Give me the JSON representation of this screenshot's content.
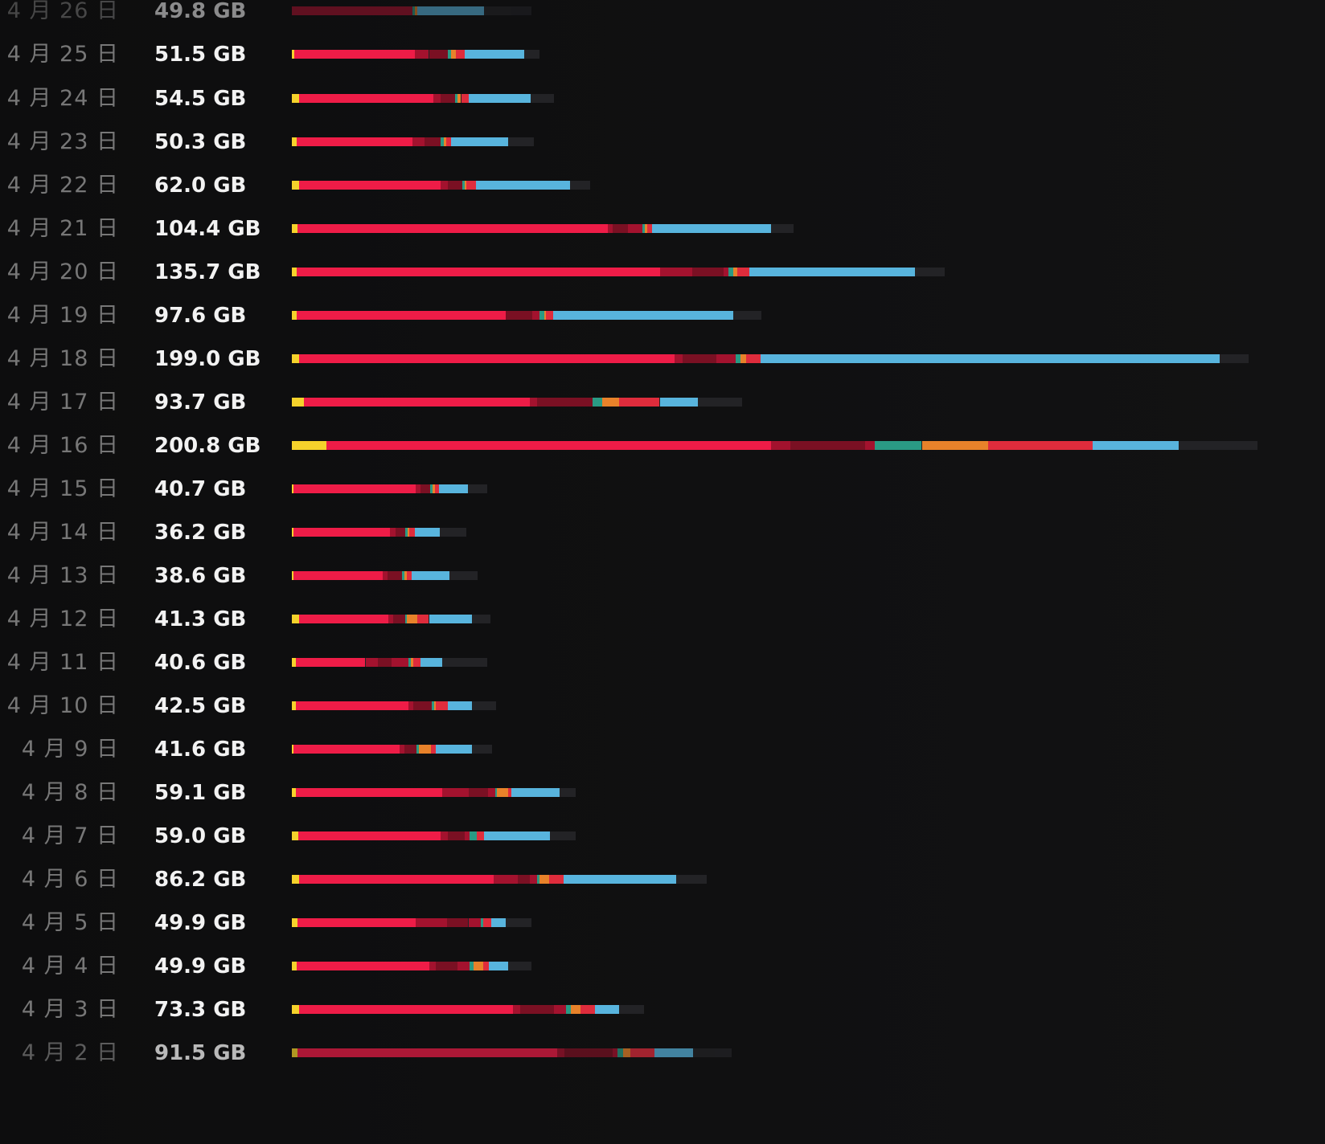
{
  "scale_gb_per_unit": 200.8,
  "colors": {
    "yellow": "#f5d22b",
    "red": "#ee1c47",
    "maroon": "#a3122e",
    "dark-maroon": "#7a1023",
    "teal": "#2a9a84",
    "orange": "#e8822a",
    "red2": "#df2c3c",
    "blue": "#58b4dd",
    "free": "#232326"
  },
  "rows": [
    {
      "date": "4 月 26 日",
      "size": "49.8 GB",
      "state": "dim",
      "total": 49.8,
      "segments": [
        [
          "maroon",
          25
        ],
        [
          "teal",
          0.5
        ],
        [
          "orange",
          0.5
        ],
        [
          "blue",
          14
        ]
      ]
    },
    {
      "date": "4 月 25 日",
      "size": "51.5 GB",
      "total": 51.5,
      "segments": [
        [
          "yellow",
          0.5
        ],
        [
          "red",
          25
        ],
        [
          "maroon",
          3
        ],
        [
          "dark-maroon",
          4
        ],
        [
          "teal",
          0.6
        ],
        [
          "orange",
          1
        ],
        [
          "red2",
          1.8
        ],
        [
          "blue",
          12.5
        ]
      ]
    },
    {
      "date": "4 月 24 日",
      "size": "54.5 GB",
      "total": 54.5,
      "segments": [
        [
          "yellow",
          1.5
        ],
        [
          "red",
          28
        ],
        [
          "maroon",
          1.5
        ],
        [
          "dark-maroon",
          3
        ],
        [
          "teal",
          0.4
        ],
        [
          "orange",
          0.8
        ],
        [
          "red2",
          1.5
        ],
        [
          "blue",
          13
        ]
      ]
    },
    {
      "date": "4 月 23 日",
      "size": "50.3 GB",
      "total": 50.3,
      "segments": [
        [
          "yellow",
          1
        ],
        [
          "red",
          24
        ],
        [
          "maroon",
          2.5
        ],
        [
          "dark-maroon",
          3.5
        ],
        [
          "teal",
          0.6
        ],
        [
          "orange",
          0.5
        ],
        [
          "red2",
          1
        ],
        [
          "blue",
          11.8
        ]
      ]
    },
    {
      "date": "4 月 22 日",
      "size": "62.0 GB",
      "total": 62.0,
      "segments": [
        [
          "yellow",
          1.5
        ],
        [
          "red",
          29.5
        ],
        [
          "maroon",
          1.5
        ],
        [
          "dark-maroon",
          3
        ],
        [
          "teal",
          0.5
        ],
        [
          "orange",
          0.3
        ],
        [
          "red2",
          2
        ],
        [
          "blue",
          19.5
        ]
      ]
    },
    {
      "date": "4 月 21 日",
      "size": "104.4 GB",
      "total": 104.4,
      "segments": [
        [
          "yellow",
          1.2
        ],
        [
          "red",
          64.5
        ],
        [
          "maroon",
          1
        ],
        [
          "dark-maroon",
          3.2
        ],
        [
          "maroon",
          3
        ],
        [
          "teal",
          0.5
        ],
        [
          "orange",
          0.5
        ],
        [
          "red2",
          1
        ],
        [
          "blue",
          24.8
        ]
      ]
    },
    {
      "date": "4 月 20 日",
      "size": "135.7 GB",
      "total": 135.7,
      "segments": [
        [
          "yellow",
          1
        ],
        [
          "red",
          75.5
        ],
        [
          "maroon",
          6.8
        ],
        [
          "dark-maroon",
          6.5
        ],
        [
          "maroon",
          1
        ],
        [
          "teal",
          1
        ],
        [
          "orange",
          0.8
        ],
        [
          "red2",
          2.5
        ],
        [
          "blue",
          34.5
        ]
      ]
    },
    {
      "date": "4 月 19 日",
      "size": "97.6 GB",
      "total": 97.6,
      "segments": [
        [
          "yellow",
          1
        ],
        [
          "red",
          43.5
        ],
        [
          "dark-maroon",
          5.5
        ],
        [
          "maroon",
          1.5
        ],
        [
          "teal",
          1
        ],
        [
          "orange",
          0.3
        ],
        [
          "red2",
          1.5
        ],
        [
          "blue",
          37.5
        ]
      ]
    },
    {
      "date": "4 月 18 日",
      "size": "199.0 GB",
      "total": 199.0,
      "segments": [
        [
          "yellow",
          1.5
        ],
        [
          "red",
          78
        ],
        [
          "maroon",
          1.8
        ],
        [
          "dark-maroon",
          7
        ],
        [
          "maroon",
          4
        ],
        [
          "teal",
          1
        ],
        [
          "orange",
          1.2
        ],
        [
          "red2",
          3
        ],
        [
          "blue",
          95.5
        ]
      ]
    },
    {
      "date": "4 月 17 日",
      "size": "93.7 GB",
      "total": 93.7,
      "segments": [
        [
          "yellow",
          2.5
        ],
        [
          "red",
          47
        ],
        [
          "maroon",
          1.5
        ],
        [
          "dark-maroon",
          11.5
        ],
        [
          "teal",
          2
        ],
        [
          "orange",
          3.5
        ],
        [
          "red2",
          8.5
        ],
        [
          "blue",
          8
        ]
      ]
    },
    {
      "date": "4 月 16 日",
      "size": "200.8 GB",
      "total": 200.8,
      "segments": [
        [
          "yellow",
          7.2
        ],
        [
          "red",
          92.5
        ],
        [
          "maroon",
          4
        ],
        [
          "dark-maroon",
          15.5
        ],
        [
          "maroon",
          2
        ],
        [
          "teal",
          9.8
        ],
        [
          "orange",
          13.8
        ],
        [
          "red2",
          21.7
        ],
        [
          "blue",
          18
        ]
      ]
    },
    {
      "date": "4 月 15 日",
      "size": "40.7 GB",
      "total": 40.7,
      "segments": [
        [
          "yellow",
          0.3
        ],
        [
          "red",
          25.5
        ],
        [
          "maroon",
          1
        ],
        [
          "dark-maroon",
          2
        ],
        [
          "teal",
          0.5
        ],
        [
          "orange",
          0.5
        ],
        [
          "red2",
          0.8
        ],
        [
          "blue",
          6
        ]
      ]
    },
    {
      "date": "4 月 14 日",
      "size": "36.2 GB",
      "total": 36.2,
      "segments": [
        [
          "yellow",
          0.4
        ],
        [
          "red",
          20
        ],
        [
          "maroon",
          1.2
        ],
        [
          "dark-maroon",
          2
        ],
        [
          "teal",
          0.4
        ],
        [
          "orange",
          0.4
        ],
        [
          "red2",
          1.2
        ],
        [
          "blue",
          5.2
        ]
      ]
    },
    {
      "date": "4 月 13 日",
      "size": "38.6 GB",
      "total": 38.6,
      "segments": [
        [
          "yellow",
          0.4
        ],
        [
          "red",
          18.5
        ],
        [
          "maroon",
          1
        ],
        [
          "dark-maroon",
          3
        ],
        [
          "teal",
          0.5
        ],
        [
          "orange",
          0.5
        ],
        [
          "red2",
          1
        ],
        [
          "blue",
          7.8
        ]
      ]
    },
    {
      "date": "4 月 12 日",
      "size": "41.3 GB",
      "total": 41.3,
      "segments": [
        [
          "yellow",
          1.5
        ],
        [
          "red",
          18.5
        ],
        [
          "maroon",
          1
        ],
        [
          "dark-maroon",
          2.5
        ],
        [
          "teal",
          0.4
        ],
        [
          "orange",
          2.2
        ],
        [
          "red2",
          2.4
        ],
        [
          "blue",
          9
        ]
      ]
    },
    {
      "date": "4 月 11 日",
      "size": "40.6 GB",
      "total": 40.6,
      "segments": [
        [
          "yellow",
          0.8
        ],
        [
          "red",
          14.5
        ],
        [
          "maroon",
          2.5
        ],
        [
          "dark-maroon",
          3
        ],
        [
          "maroon",
          3.5
        ],
        [
          "teal",
          0.4
        ],
        [
          "orange",
          0.6
        ],
        [
          "red2",
          1.5
        ],
        [
          "blue",
          4.5
        ]
      ]
    },
    {
      "date": "4 月 10 日",
      "size": "42.5 GB",
      "total": 42.5,
      "segments": [
        [
          "yellow",
          0.8
        ],
        [
          "red",
          23.5
        ],
        [
          "maroon",
          1
        ],
        [
          "dark-maroon",
          3.8
        ],
        [
          "teal",
          0.5
        ],
        [
          "orange",
          0.4
        ],
        [
          "red2",
          2.5
        ],
        [
          "blue",
          5
        ]
      ]
    },
    {
      "date": "4 月 9 日",
      "size": "41.6 GB",
      "total": 41.6,
      "segments": [
        [
          "yellow",
          0.4
        ],
        [
          "red",
          22
        ],
        [
          "maroon",
          1
        ],
        [
          "dark-maroon",
          2.5
        ],
        [
          "teal",
          0.5
        ],
        [
          "orange",
          2.5
        ],
        [
          "red2",
          1
        ],
        [
          "blue",
          7.5
        ]
      ]
    },
    {
      "date": "4 月 8 日",
      "size": "59.1 GB",
      "total": 59.1,
      "segments": [
        [
          "yellow",
          0.8
        ],
        [
          "red",
          30.5
        ],
        [
          "maroon",
          5.5
        ],
        [
          "dark-maroon",
          4
        ],
        [
          "maroon",
          1.5
        ],
        [
          "teal",
          0.3
        ],
        [
          "orange",
          2.4
        ],
        [
          "red2",
          0.7
        ],
        [
          "blue",
          10
        ]
      ]
    },
    {
      "date": "4 月 7 日",
      "size": "59.0 GB",
      "total": 59.0,
      "segments": [
        [
          "yellow",
          1.4
        ],
        [
          "red",
          29.5
        ],
        [
          "maroon",
          1.5
        ],
        [
          "dark-maroon",
          3.5
        ],
        [
          "maroon",
          1
        ],
        [
          "teal",
          1.5
        ],
        [
          "red2",
          1.5
        ],
        [
          "blue",
          13.8
        ]
      ]
    },
    {
      "date": "4 月 6 日",
      "size": "86.2 GB",
      "total": 86.2,
      "segments": [
        [
          "yellow",
          1.5
        ],
        [
          "red",
          40.5
        ],
        [
          "maroon",
          5
        ],
        [
          "dark-maroon",
          2.5
        ],
        [
          "maroon",
          1.5
        ],
        [
          "teal",
          0.5
        ],
        [
          "orange",
          2
        ],
        [
          "red2",
          3
        ],
        [
          "blue",
          23.5
        ]
      ]
    },
    {
      "date": "4 月 5 日",
      "size": "49.9 GB",
      "total": 49.9,
      "segments": [
        [
          "yellow",
          1.2
        ],
        [
          "red",
          24.5
        ],
        [
          "maroon",
          6.5
        ],
        [
          "dark-maroon",
          4.5
        ],
        [
          "maroon",
          2.5
        ],
        [
          "teal",
          0.6
        ],
        [
          "red2",
          1.7
        ],
        [
          "blue",
          3
        ]
      ]
    },
    {
      "date": "4 月 4 日",
      "size": "49.9 GB",
      "total": 49.9,
      "segments": [
        [
          "yellow",
          1
        ],
        [
          "red",
          27.5
        ],
        [
          "maroon",
          1.5
        ],
        [
          "dark-maroon",
          4.5
        ],
        [
          "maroon",
          2.5
        ],
        [
          "teal",
          0.8
        ],
        [
          "orange",
          2
        ],
        [
          "red2",
          1.2
        ],
        [
          "blue",
          4
        ]
      ]
    },
    {
      "date": "4 月 3 日",
      "size": "73.3 GB",
      "total": 73.3,
      "segments": [
        [
          "yellow",
          1.5
        ],
        [
          "red",
          44.5
        ],
        [
          "maroon",
          1.5
        ],
        [
          "dark-maroon",
          7
        ],
        [
          "maroon",
          2.5
        ],
        [
          "teal",
          1
        ],
        [
          "orange",
          2
        ],
        [
          "red2",
          3
        ],
        [
          "blue",
          5
        ]
      ]
    },
    {
      "date": "4 月 2 日",
      "size": "91.5 GB",
      "state": "faded",
      "total": 91.5,
      "segments": [
        [
          "yellow",
          1.2
        ],
        [
          "red",
          54
        ],
        [
          "maroon",
          1.5
        ],
        [
          "dark-maroon",
          10
        ],
        [
          "maroon",
          1
        ],
        [
          "teal",
          1.2
        ],
        [
          "orange",
          1.5
        ],
        [
          "red2",
          5
        ],
        [
          "blue",
          8
        ]
      ]
    }
  ]
}
